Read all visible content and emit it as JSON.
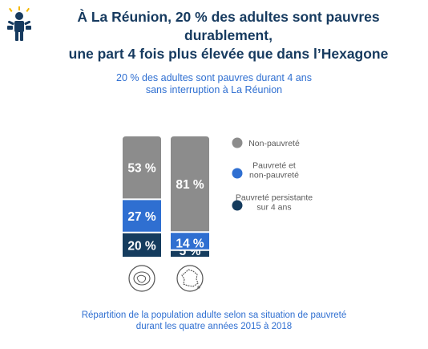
{
  "header": {
    "title_line1": "À La Réunion, 20 % des adultes sont pauvres durablement,",
    "title_line2": "une part 4 fois plus élevée que dans l’Hexagone",
    "subtitle_line1": "20 % des adultes sont pauvres durant 4 ans",
    "subtitle_line2": "sans interruption à La Réunion",
    "icon": "person-with-empty-pockets-icon"
  },
  "footer": {
    "line1": "Répartition de la population adulte selon sa situation de pauvreté",
    "line2": "durant les quatre années 2015 à 2018"
  },
  "colors": {
    "title": "#163a5f",
    "accent": "#2f6fd1",
    "non_pauvrete": "#8c8c8c",
    "intermittent": "#2f6fd1",
    "persistante": "#153c5e"
  },
  "chart_data": {
    "type": "bar",
    "stacked": true,
    "categories": [
      "La Réunion",
      "Hexagone"
    ],
    "category_icons": [
      "reunion-island-map-icon",
      "france-map-icon"
    ],
    "series": [
      {
        "name": "Pauvreté persistante sur 4 ans",
        "values": [
          20,
          5
        ],
        "labels": [
          "20 %",
          "5 %"
        ],
        "color": "#153c5e"
      },
      {
        "name": "Pauvreté et non-pauvreté",
        "values": [
          27,
          14
        ],
        "labels": [
          "27 %",
          "14 %"
        ],
        "color": "#2f6fd1"
      },
      {
        "name": "Non-pauvreté",
        "values": [
          53,
          81
        ],
        "labels": [
          "53 %",
          "81 %"
        ],
        "color": "#8c8c8c"
      }
    ],
    "legend": [
      {
        "lines": [
          "Non-pauvreté"
        ],
        "color": "#8c8c8c"
      },
      {
        "lines": [
          "Pauvreté et",
          "non-pauvreté"
        ],
        "color": "#2f6fd1"
      },
      {
        "lines": [
          "Pauvreté persistante",
          "sur 4 ans"
        ],
        "color": "#153c5e"
      }
    ],
    "legend_position": "right",
    "ylim": [
      0,
      100
    ]
  }
}
